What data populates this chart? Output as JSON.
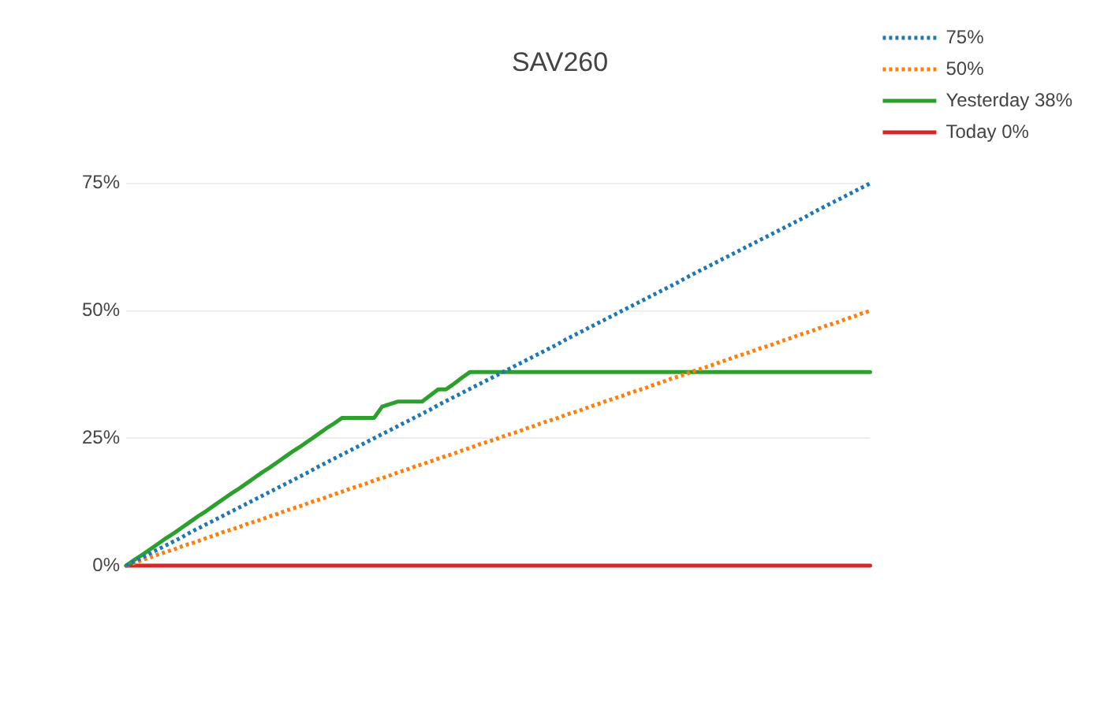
{
  "chart_data": {
    "type": "line",
    "title": "SAV260",
    "categories": [
      null,
      null,
      null,
      null,
      null,
      null,
      null,
      null,
      null,
      null,
      null,
      null,
      null,
      null,
      null,
      null,
      null,
      null,
      null,
      null,
      null,
      null,
      null,
      null,
      null,
      null,
      null,
      null,
      null,
      null,
      null,
      null,
      null,
      null,
      null,
      null,
      null,
      null,
      null,
      null,
      null,
      null,
      null,
      null,
      null,
      null,
      null,
      null,
      null,
      null,
      null,
      null,
      null,
      null,
      null,
      null,
      null,
      null,
      null,
      null,
      null,
      null,
      null,
      null,
      null,
      null,
      null,
      null,
      null,
      null,
      null,
      null,
      null,
      null,
      null,
      null,
      null,
      null,
      null,
      null,
      null,
      null,
      null,
      null,
      null,
      null,
      null,
      null,
      null,
      null,
      null,
      null,
      null,
      null
    ],
    "ylim": [
      0,
      75
    ],
    "yticks": [
      {
        "value": 0,
        "label": "0%"
      },
      {
        "value": 25,
        "label": "25%"
      },
      {
        "value": 50,
        "label": "50%"
      },
      {
        "value": 75,
        "label": "75%"
      }
    ],
    "tick_labels": "y",
    "grid": "y",
    "legend": "top right",
    "marker": "none",
    "series": [
      {
        "name": "75%",
        "color": "#1f77b4",
        "line_style": "dotted",
        "values": [
          0,
          0.8,
          1.6,
          2.4,
          3.2,
          4.0,
          4.8,
          5.6,
          6.5,
          7.3,
          8.1,
          8.9,
          9.7,
          10.5,
          11.3,
          12.1,
          12.9,
          13.7,
          14.5,
          15.3,
          16.1,
          16.9,
          17.7,
          18.5,
          19.4,
          20.2,
          21.0,
          21.8,
          22.6,
          23.4,
          24.2,
          25.0,
          25.8,
          26.6,
          27.4,
          28.2,
          29.0,
          29.8,
          30.6,
          31.5,
          32.3,
          33.1,
          33.9,
          34.7,
          35.5,
          36.3,
          37.1,
          37.9,
          38.7,
          39.5,
          40.3,
          41.1,
          41.9,
          42.7,
          43.5,
          44.4,
          45.2,
          46.0,
          46.8,
          47.6,
          48.4,
          49.2,
          50.0,
          50.8,
          51.6,
          52.4,
          53.2,
          54.0,
          54.8,
          55.6,
          56.5,
          57.3,
          58.1,
          58.9,
          59.7,
          60.5,
          61.3,
          62.1,
          62.9,
          63.7,
          64.5,
          65.3,
          66.1,
          66.9,
          67.7,
          68.5,
          69.4,
          70.2,
          71.0,
          71.8,
          72.6,
          73.4,
          74.2,
          75.0
        ]
      },
      {
        "name": "50%",
        "color": "#ff7f0e",
        "line_style": "dotted",
        "values": [
          0,
          0.5,
          1.1,
          1.6,
          2.2,
          2.7,
          3.2,
          3.8,
          4.3,
          4.8,
          5.4,
          5.9,
          6.5,
          7.0,
          7.5,
          8.1,
          8.6,
          9.1,
          9.7,
          10.2,
          10.8,
          11.3,
          11.8,
          12.4,
          12.9,
          13.4,
          14.0,
          14.5,
          15.1,
          15.6,
          16.1,
          16.7,
          17.2,
          17.7,
          18.3,
          18.8,
          19.4,
          19.9,
          20.4,
          21.0,
          21.5,
          22.0,
          22.6,
          23.1,
          23.7,
          24.2,
          24.7,
          25.3,
          25.8,
          26.3,
          26.9,
          27.4,
          28.0,
          28.5,
          29.0,
          29.6,
          30.1,
          30.6,
          31.2,
          31.7,
          32.3,
          32.8,
          33.3,
          33.9,
          34.4,
          34.9,
          35.5,
          36.0,
          36.6,
          37.1,
          37.6,
          38.2,
          38.7,
          39.2,
          39.8,
          40.3,
          40.9,
          41.4,
          41.9,
          42.5,
          43.0,
          43.5,
          44.1,
          44.6,
          45.2,
          45.7,
          46.2,
          46.8,
          47.3,
          47.8,
          48.4,
          48.9,
          49.5,
          50.0
        ]
      },
      {
        "name": "Yesterday 38%",
        "color": "#2ca02c",
        "line_style": "solid",
        "values": [
          0,
          1.1,
          2.1,
          3.2,
          4.3,
          5.4,
          6.4,
          7.5,
          8.6,
          9.7,
          10.7,
          11.8,
          12.9,
          14.0,
          15.0,
          16.1,
          17.2,
          18.3,
          19.3,
          20.4,
          21.5,
          22.6,
          23.6,
          24.7,
          25.8,
          26.9,
          27.9,
          29,
          29,
          29,
          29,
          29,
          31.2,
          31.7,
          32.2,
          32.2,
          32.2,
          32.2,
          33.4,
          34.6,
          34.6,
          35.7,
          36.9,
          38,
          38,
          38,
          38,
          38,
          38,
          38,
          38,
          38,
          38,
          38,
          38,
          38,
          38,
          38,
          38,
          38,
          38,
          38,
          38,
          38,
          38,
          38,
          38,
          38,
          38,
          38,
          38,
          38,
          38,
          38,
          38,
          38,
          38,
          38,
          38,
          38,
          38,
          38,
          38,
          38,
          38,
          38,
          38,
          38,
          38,
          38,
          38,
          38,
          38,
          38
        ]
      },
      {
        "name": "Today 0%",
        "color": "#d62728",
        "line_style": "solid",
        "values": [
          0,
          0,
          0,
          0,
          0,
          0,
          0,
          0,
          0,
          0,
          0,
          0,
          0,
          0,
          0,
          0,
          0,
          0,
          0,
          0,
          0,
          0,
          0,
          0,
          0,
          0,
          0,
          0,
          0,
          0,
          0,
          0,
          0,
          0,
          0,
          0,
          0,
          0,
          0,
          0,
          0,
          0,
          0,
          0,
          0,
          0,
          0,
          0,
          0,
          0,
          0,
          0,
          0,
          0,
          0,
          0,
          0,
          0,
          0,
          0,
          0,
          0,
          0,
          0,
          0,
          0,
          0,
          0,
          0,
          0,
          0,
          0,
          0,
          0,
          0,
          0,
          0,
          0,
          0,
          0,
          0,
          0,
          0,
          0,
          0,
          0,
          0,
          0,
          0,
          0,
          0,
          0,
          0,
          0
        ]
      }
    ]
  }
}
